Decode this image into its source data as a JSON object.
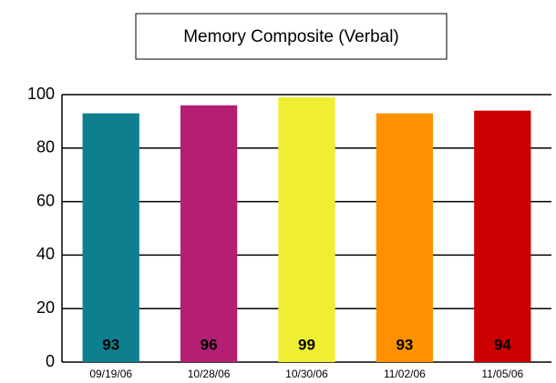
{
  "chart_data": {
    "type": "bar",
    "title": "Memory Composite (Verbal)",
    "categories": [
      "09/19/06",
      "10/28/06",
      "10/30/06",
      "11/02/06",
      "11/05/06"
    ],
    "values": [
      93,
      96,
      99,
      93,
      94
    ],
    "colors": [
      "#0e7f8f",
      "#b51f73",
      "#f0ee32",
      "#ff9100",
      "#cc0000"
    ],
    "ylim": [
      0,
      100
    ],
    "yticks": [
      0,
      20,
      40,
      60,
      80,
      100
    ],
    "grid": true
  }
}
